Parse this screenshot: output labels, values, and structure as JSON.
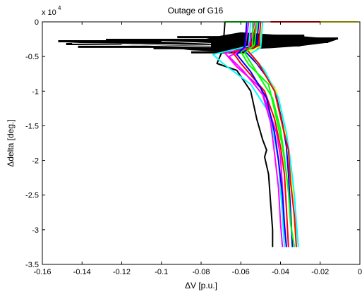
{
  "chart_data": {
    "type": "line",
    "title": "Outage of G16",
    "xlabel": "ΔV [p.u.]",
    "ylabel": "Δdelta [deg.]",
    "xlim": [
      -0.16,
      0
    ],
    "ylim": [
      -35000,
      0
    ],
    "y_exponent_label": "x 10",
    "y_exponent_power": "4",
    "x_ticks": [
      -0.16,
      -0.14,
      -0.12,
      -0.1,
      -0.08,
      -0.06,
      -0.04,
      -0.02,
      0
    ],
    "x_tick_labels": [
      "-0.16",
      "-0.14",
      "-0.12",
      "-0.1",
      "-0.08",
      "-0.06",
      "-0.04",
      "-0.02",
      "0"
    ],
    "y_ticks": [
      0,
      -5000,
      -10000,
      -15000,
      -20000,
      -25000,
      -30000,
      -35000
    ],
    "y_tick_labels": [
      "0",
      "-0.5",
      "-1",
      "-1.5",
      "-2",
      "-2.5",
      "-3",
      "-3.5"
    ],
    "grid": false,
    "legend": "none",
    "black_spikes": [
      {
        "v": -0.152,
        "d": -2800
      },
      {
        "v": -0.148,
        "d": -3200
      },
      {
        "v": -0.142,
        "d": -3600
      },
      {
        "v": -0.128,
        "d": -2600
      },
      {
        "v": -0.118,
        "d": -3100
      },
      {
        "v": -0.104,
        "d": -3800
      },
      {
        "v": -0.092,
        "d": -2200
      },
      {
        "v": -0.085,
        "d": -4400
      },
      {
        "v": -0.011,
        "d": -2400
      },
      {
        "v": -0.016,
        "d": -2900
      },
      {
        "v": -0.028,
        "d": -2000
      },
      {
        "v": -0.03,
        "d": -3400
      }
    ],
    "series": [
      {
        "color": "#000000",
        "points": [
          {
            "v": -0.068,
            "d": 0
          },
          {
            "v": -0.069,
            "d": -4000
          },
          {
            "v": -0.072,
            "d": -6000
          },
          {
            "v": -0.062,
            "d": -7000
          },
          {
            "v": -0.055,
            "d": -10000
          },
          {
            "v": -0.052,
            "d": -14000
          },
          {
            "v": -0.049,
            "d": -17000
          },
          {
            "v": -0.047,
            "d": -18500
          },
          {
            "v": -0.048,
            "d": -19500
          },
          {
            "v": -0.046,
            "d": -22000
          },
          {
            "v": -0.045,
            "d": -26000
          },
          {
            "v": -0.044,
            "d": -30000
          },
          {
            "v": -0.044,
            "d": -32500
          }
        ]
      },
      {
        "color": "#00ffff",
        "points": [
          {
            "v": -0.055,
            "d": 0
          },
          {
            "v": -0.056,
            "d": -3500
          },
          {
            "v": -0.074,
            "d": -4700
          },
          {
            "v": -0.069,
            "d": -6000
          },
          {
            "v": -0.055,
            "d": -9000
          },
          {
            "v": -0.046,
            "d": -13000
          },
          {
            "v": -0.043,
            "d": -17000
          },
          {
            "v": -0.041,
            "d": -20000
          },
          {
            "v": -0.04,
            "d": -24000
          },
          {
            "v": -0.039,
            "d": -28000
          },
          {
            "v": -0.038,
            "d": -32500
          }
        ]
      },
      {
        "color": "#ff00ff",
        "points": [
          {
            "v": -0.053,
            "d": 0
          },
          {
            "v": -0.056,
            "d": -3800
          },
          {
            "v": -0.068,
            "d": -4500
          },
          {
            "v": -0.062,
            "d": -6500
          },
          {
            "v": -0.05,
            "d": -9500
          },
          {
            "v": -0.045,
            "d": -13500
          },
          {
            "v": -0.042,
            "d": -16000
          },
          {
            "v": -0.04,
            "d": -19500
          },
          {
            "v": -0.039,
            "d": -24000
          },
          {
            "v": -0.038,
            "d": -29000
          },
          {
            "v": -0.037,
            "d": -32500
          }
        ]
      },
      {
        "color": "#ff0000",
        "points": [
          {
            "v": -0.052,
            "d": 0
          },
          {
            "v": -0.055,
            "d": -3700
          },
          {
            "v": -0.064,
            "d": -4400
          },
          {
            "v": -0.06,
            "d": -6000
          },
          {
            "v": -0.048,
            "d": -10000
          },
          {
            "v": -0.043,
            "d": -14000
          },
          {
            "v": -0.04,
            "d": -18000
          },
          {
            "v": -0.038,
            "d": -22000
          },
          {
            "v": -0.037,
            "d": -27000
          },
          {
            "v": -0.036,
            "d": -32500
          }
        ]
      },
      {
        "color": "#00ff00",
        "points": [
          {
            "v": -0.054,
            "d": 0
          },
          {
            "v": -0.054,
            "d": -3600
          },
          {
            "v": -0.06,
            "d": -4300
          },
          {
            "v": -0.056,
            "d": -6200
          },
          {
            "v": -0.046,
            "d": -9000
          },
          {
            "v": -0.042,
            "d": -14000
          },
          {
            "v": -0.039,
            "d": -18000
          },
          {
            "v": -0.037,
            "d": -22000
          },
          {
            "v": -0.035,
            "d": -27000
          },
          {
            "v": -0.034,
            "d": -32500
          }
        ]
      },
      {
        "color": "#0000ff",
        "points": [
          {
            "v": -0.051,
            "d": 0
          },
          {
            "v": -0.052,
            "d": -3500
          },
          {
            "v": -0.058,
            "d": -4200
          },
          {
            "v": -0.052,
            "d": -6000
          },
          {
            "v": -0.043,
            "d": -9500
          },
          {
            "v": -0.04,
            "d": -13000
          },
          {
            "v": -0.037,
            "d": -18000
          },
          {
            "v": -0.036,
            "d": -22000
          },
          {
            "v": -0.035,
            "d": -27000
          },
          {
            "v": -0.034,
            "d": -32500
          }
        ]
      },
      {
        "color": "#ffff00",
        "points": [
          {
            "v": -0.05,
            "d": 0
          },
          {
            "v": -0.05,
            "d": -3500
          },
          {
            "v": -0.056,
            "d": -4300
          },
          {
            "v": -0.05,
            "d": -6500
          },
          {
            "v": -0.042,
            "d": -10000
          },
          {
            "v": -0.038,
            "d": -15000
          },
          {
            "v": -0.036,
            "d": -19000
          },
          {
            "v": -0.034,
            "d": -24000
          },
          {
            "v": -0.033,
            "d": -29000
          },
          {
            "v": -0.032,
            "d": -32500
          }
        ]
      },
      {
        "color": "#00ffff",
        "points": [
          {
            "v": -0.049,
            "d": 0
          },
          {
            "v": -0.05,
            "d": -3700
          },
          {
            "v": -0.055,
            "d": -4600
          },
          {
            "v": -0.048,
            "d": -7000
          },
          {
            "v": -0.041,
            "d": -11000
          },
          {
            "v": -0.037,
            "d": -16000
          },
          {
            "v": -0.035,
            "d": -20000
          },
          {
            "v": -0.033,
            "d": -25000
          },
          {
            "v": -0.032,
            "d": -29000
          },
          {
            "v": -0.031,
            "d": -32500
          }
        ]
      },
      {
        "color": "#ff00ff",
        "points": [
          {
            "v": -0.056,
            "d": 0
          },
          {
            "v": -0.058,
            "d": -3900
          },
          {
            "v": -0.066,
            "d": -5000
          },
          {
            "v": -0.059,
            "d": -7000
          },
          {
            "v": -0.049,
            "d": -10500
          },
          {
            "v": -0.045,
            "d": -14500
          },
          {
            "v": -0.043,
            "d": -19000
          },
          {
            "v": -0.041,
            "d": -24000
          },
          {
            "v": -0.04,
            "d": -29000
          },
          {
            "v": -0.039,
            "d": -32500
          }
        ]
      },
      {
        "color": "#ff0000",
        "points": [
          {
            "v": -0.05,
            "d": 0
          },
          {
            "v": -0.051,
            "d": -3400
          },
          {
            "v": -0.057,
            "d": -4000
          },
          {
            "v": -0.051,
            "d": -6000
          },
          {
            "v": -0.043,
            "d": -10000
          },
          {
            "v": -0.039,
            "d": -15000
          },
          {
            "v": -0.036,
            "d": -18500
          },
          {
            "v": -0.035,
            "d": -23000
          },
          {
            "v": -0.033,
            "d": -28000
          },
          {
            "v": -0.032,
            "d": -32500
          }
        ]
      },
      {
        "color": "#00ff00",
        "points": [
          {
            "v": -0.052,
            "d": 0
          },
          {
            "v": -0.053,
            "d": -3300
          },
          {
            "v": -0.058,
            "d": -4500
          },
          {
            "v": -0.053,
            "d": -6800
          },
          {
            "v": -0.044,
            "d": -11000
          },
          {
            "v": -0.04,
            "d": -15500
          },
          {
            "v": -0.038,
            "d": -19500
          },
          {
            "v": -0.036,
            "d": -24500
          },
          {
            "v": -0.035,
            "d": -29000
          },
          {
            "v": -0.033,
            "d": -32500
          }
        ]
      },
      {
        "color": "#0000ff",
        "points": [
          {
            "v": -0.057,
            "d": 0
          },
          {
            "v": -0.058,
            "d": -3600
          },
          {
            "v": -0.062,
            "d": -4700
          },
          {
            "v": -0.055,
            "d": -7200
          },
          {
            "v": -0.047,
            "d": -11000
          },
          {
            "v": -0.043,
            "d": -16000
          },
          {
            "v": -0.041,
            "d": -20000
          },
          {
            "v": -0.039,
            "d": -25000
          },
          {
            "v": -0.038,
            "d": -29500
          },
          {
            "v": -0.037,
            "d": -32500
          }
        ]
      }
    ],
    "horizontal_lines": [
      {
        "color": "#00ff00",
        "v0": -0.068,
        "v1": -0.05,
        "d": 0
      },
      {
        "color": "#ff0000",
        "v0": -0.045,
        "v1": -0.02,
        "d": 0
      },
      {
        "color": "#ffff00",
        "v0": -0.02,
        "v1": -0.001,
        "d": 0
      }
    ]
  }
}
